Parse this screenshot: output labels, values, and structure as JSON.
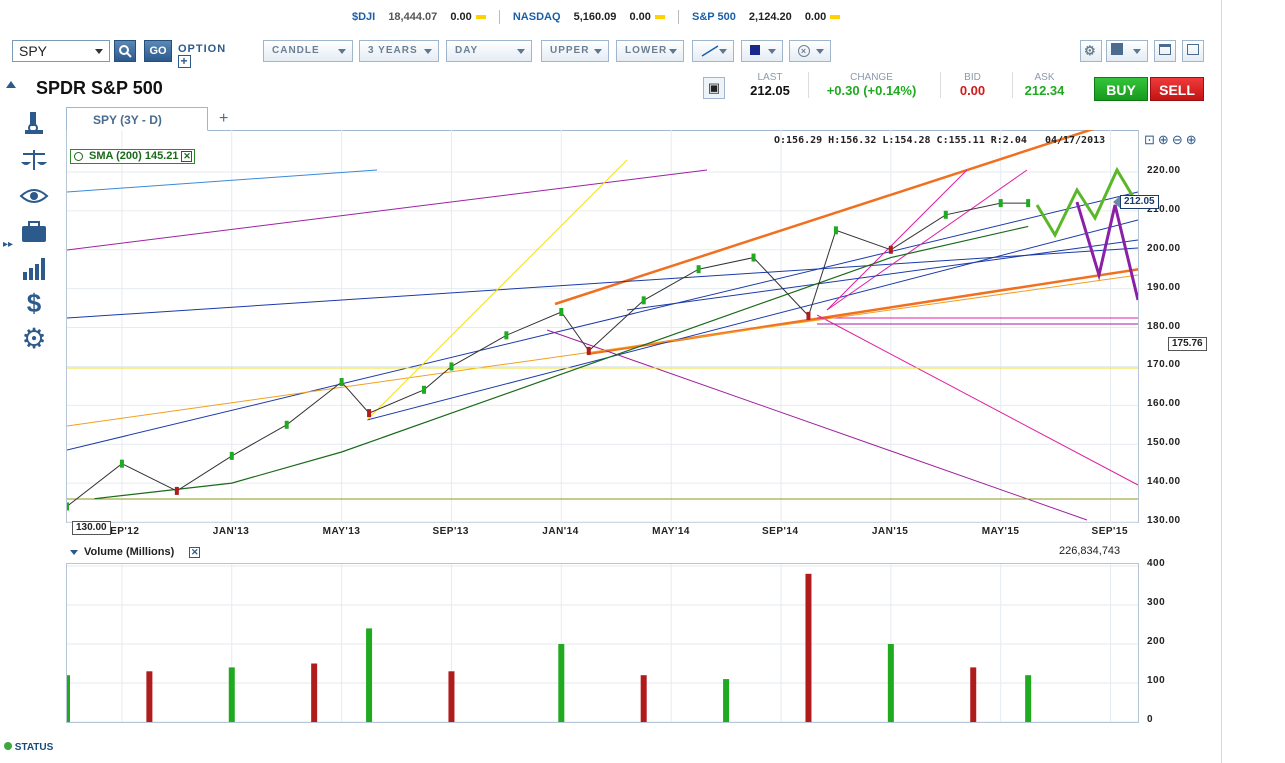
{
  "ticker_bar": {
    "djia_label": "$DJI",
    "djia_value": "18,444.07",
    "djia_change": "0.00",
    "nasdaq_label": "NASDAQ",
    "nasdaq_value": "5,160.09",
    "nasdaq_change": "0.00",
    "sp500_label": "S&P 500",
    "sp500_value": "2,124.20",
    "sp500_change": "0.00"
  },
  "toolbar": {
    "symbol": "SPY",
    "go_label": "GO",
    "option_label": "OPTION",
    "chart_type": "CANDLE",
    "period": "3 YEARS",
    "interval": "DAY",
    "upper": "UPPER",
    "lower": "LOWER"
  },
  "security": {
    "name": "SPDR S&P 500"
  },
  "quote": {
    "last_label": "LAST",
    "last": "212.05",
    "change_label": "CHANGE",
    "change": "+0.30 (+0.14%)",
    "bid_label": "BID",
    "bid": "0.00",
    "ask_label": "ASK",
    "ask": "212.34",
    "buy_label": "BUY",
    "sell_label": "SELL"
  },
  "colors": {
    "up": "#1faa1f",
    "down": "#b01c1c",
    "accent": "#1a5fa8",
    "buy": "#1faa1f",
    "sell": "#d11a1a"
  },
  "chart_tab": {
    "label": "SPY (3Y - D)",
    "add_label": "+"
  },
  "ohlc_readout": "O:156.29 H:156.32 L:154.28 C:155.11 R:2.04",
  "date_readout": "04/17/2013",
  "sma_label": "SMA (200) 145.21",
  "price_badges": {
    "current": "212.05",
    "marker": "175.76",
    "bottom": "130.00"
  },
  "volume_panel": {
    "title": "Volume (Millions)",
    "last_volume": "226,834,743"
  },
  "status_label": "STATUS",
  "chart_data": [
    {
      "type": "line",
      "title": "SPY (3Y - D)",
      "xlabel": "",
      "ylabel": "",
      "x_ticks": [
        "SEP'12",
        "JAN'13",
        "MAY'13",
        "SEP'13",
        "JAN'14",
        "MAY'14",
        "SEP'14",
        "JAN'15",
        "MAY'15",
        "SEP'15"
      ],
      "y_ticks": [
        "130.00",
        "140.00",
        "150.00",
        "160.00",
        "170.00",
        "180.00",
        "190.00",
        "200.00",
        "210.00",
        "220.00"
      ],
      "ylim": [
        130,
        220
      ],
      "series": [
        {
          "name": "SPY",
          "x": [
            "2012-07",
            "2012-09",
            "2012-11",
            "2013-01",
            "2013-03",
            "2013-05",
            "2013-06",
            "2013-08",
            "2013-09",
            "2013-11",
            "2014-01",
            "2014-02",
            "2014-04",
            "2014-06",
            "2014-08",
            "2014-10",
            "2014-11",
            "2015-01",
            "2015-03",
            "2015-05",
            "2015-06"
          ],
          "values": [
            134,
            145,
            138,
            147,
            155,
            166,
            158,
            164,
            170,
            178,
            184,
            174,
            187,
            195,
            198,
            183,
            205,
            200,
            209,
            212,
            212
          ]
        },
        {
          "name": "SMA (200)",
          "x": [
            "2012-08",
            "2013-01",
            "2013-05",
            "2013-09",
            "2014-01",
            "2014-05",
            "2014-09",
            "2015-01",
            "2015-06"
          ],
          "values": [
            136,
            140,
            148,
            158,
            168,
            178,
            188,
            198,
            206
          ]
        }
      ],
      "annotations": [
        "212.05",
        "175.76",
        "130.00"
      ]
    },
    {
      "type": "bar",
      "title": "Volume (Millions)",
      "xlabel": "",
      "ylabel": "",
      "y_ticks": [
        "0",
        "100",
        "200",
        "300",
        "400"
      ],
      "ylim": [
        0,
        400
      ],
      "x": [
        "2012-07",
        "2012-10",
        "2013-01",
        "2013-04",
        "2013-06",
        "2013-09",
        "2014-01",
        "2014-04",
        "2014-07",
        "2014-10",
        "2015-01",
        "2015-04",
        "2015-06"
      ],
      "values": [
        120,
        130,
        140,
        150,
        240,
        130,
        200,
        120,
        110,
        380,
        200,
        140,
        120
      ]
    }
  ]
}
